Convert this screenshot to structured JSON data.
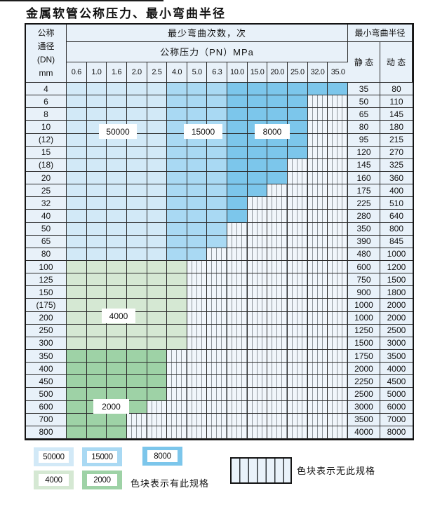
{
  "page": {
    "title": "金属软管公称压力、最小弯曲半径"
  },
  "colors": {
    "c50000": "#d2e9f7",
    "c15000": "#a9d9f3",
    "c8000": "#7cc6eb",
    "c4000": "#d5e8d3",
    "c2000": "#9ed2a6",
    "cell_bg": "#e8f1f9",
    "hatch_bg": "#f1f6fb",
    "hatch_line": "#8f969c",
    "grid_line": "#2b2b2b",
    "border": "#141414"
  },
  "header": {
    "dn_lines": [
      "公称",
      "通径",
      "(DN)",
      "mm"
    ],
    "bend_cycles": "最少弯曲次数，次",
    "pn_title": "公称压力（PN）MPa",
    "radius_title": "最小弯曲半径",
    "static_label": "静 态",
    "dynamic_label": "动 态"
  },
  "zone_labels": [
    {
      "text": "50000"
    },
    {
      "text": "15000"
    },
    {
      "text": "8000"
    },
    {
      "text": "4000"
    },
    {
      "text": "2000"
    }
  ],
  "legend": {
    "swatches": [
      {
        "label": "50000",
        "color_key": "c50000"
      },
      {
        "label": "15000",
        "color_key": "c15000"
      },
      {
        "label": "8000",
        "color_key": "c8000"
      },
      {
        "label": "4000",
        "color_key": "c4000"
      },
      {
        "label": "2000",
        "color_key": "c2000"
      }
    ],
    "has_spec_note": "色块表示有此规格",
    "no_spec_note": "色块表示无此规格"
  },
  "chart_data": {
    "type": "table",
    "title": "金属软管公称压力、最小弯曲半径",
    "pn_mpa_columns": [
      "0.6",
      "1.0",
      "1.6",
      "2.0",
      "2.5",
      "4.0",
      "5.0",
      "6.3",
      "10.0",
      "15.0",
      "20.0",
      "25.0",
      "32.0",
      "35.0"
    ],
    "bend_cycle_zones_for_blue_rows": {
      "50000": "PN 0.6–2.5",
      "15000": "PN 4.0–6.3",
      "8000": "PN 10.0–35.0"
    },
    "hatch_meaning": "无此规格",
    "rows": [
      {
        "dn": "4",
        "max_pn": "35.0",
        "cycle_group": "pn_zones",
        "static_radius": 35,
        "dynamic_radius": 80
      },
      {
        "dn": "6",
        "max_pn": "25.0",
        "cycle_group": "pn_zones",
        "static_radius": 50,
        "dynamic_radius": 110
      },
      {
        "dn": "8",
        "max_pn": "25.0",
        "cycle_group": "pn_zones",
        "static_radius": 65,
        "dynamic_radius": 145
      },
      {
        "dn": "10",
        "max_pn": "25.0",
        "cycle_group": "pn_zones",
        "static_radius": 80,
        "dynamic_radius": 180
      },
      {
        "dn": "(12)",
        "max_pn": "25.0",
        "cycle_group": "pn_zones",
        "static_radius": 95,
        "dynamic_radius": 215
      },
      {
        "dn": "15",
        "max_pn": "25.0",
        "cycle_group": "pn_zones",
        "static_radius": 120,
        "dynamic_radius": 270
      },
      {
        "dn": "(18)",
        "max_pn": "20.0",
        "cycle_group": "pn_zones",
        "static_radius": 145,
        "dynamic_radius": 325
      },
      {
        "dn": "20",
        "max_pn": "20.0",
        "cycle_group": "pn_zones",
        "static_radius": 160,
        "dynamic_radius": 360
      },
      {
        "dn": "25",
        "max_pn": "15.0",
        "cycle_group": "pn_zones",
        "static_radius": 175,
        "dynamic_radius": 400
      },
      {
        "dn": "32",
        "max_pn": "10.0",
        "cycle_group": "pn_zones",
        "static_radius": 225,
        "dynamic_radius": 510
      },
      {
        "dn": "40",
        "max_pn": "10.0",
        "cycle_group": "pn_zones",
        "static_radius": 280,
        "dynamic_radius": 640
      },
      {
        "dn": "50",
        "max_pn": "6.3",
        "cycle_group": "pn_zones",
        "static_radius": 350,
        "dynamic_radius": 800
      },
      {
        "dn": "65",
        "max_pn": "6.3",
        "cycle_group": "pn_zones",
        "static_radius": 390,
        "dynamic_radius": 845
      },
      {
        "dn": "80",
        "max_pn": "5.0",
        "cycle_group": "pn_zones",
        "static_radius": 480,
        "dynamic_radius": 1000
      },
      {
        "dn": "100",
        "max_pn": "4.0",
        "cycle_group": "4000",
        "static_radius": 600,
        "dynamic_radius": 1200
      },
      {
        "dn": "125",
        "max_pn": "4.0",
        "cycle_group": "4000",
        "static_radius": 750,
        "dynamic_radius": 1500
      },
      {
        "dn": "150",
        "max_pn": "4.0",
        "cycle_group": "4000",
        "static_radius": 900,
        "dynamic_radius": 1800
      },
      {
        "dn": "(175)",
        "max_pn": "4.0",
        "cycle_group": "4000",
        "static_radius": 1000,
        "dynamic_radius": 2000
      },
      {
        "dn": "200",
        "max_pn": "4.0",
        "cycle_group": "4000",
        "static_radius": 1000,
        "dynamic_radius": 2000
      },
      {
        "dn": "250",
        "max_pn": "4.0",
        "cycle_group": "4000",
        "static_radius": 1250,
        "dynamic_radius": 2500
      },
      {
        "dn": "300",
        "max_pn": "4.0",
        "cycle_group": "4000",
        "static_radius": 1500,
        "dynamic_radius": 3000
      },
      {
        "dn": "350",
        "max_pn": "2.5",
        "cycle_group": "2000",
        "static_radius": 1750,
        "dynamic_radius": 3500
      },
      {
        "dn": "400",
        "max_pn": "2.5",
        "cycle_group": "2000",
        "static_radius": 2000,
        "dynamic_radius": 4000
      },
      {
        "dn": "450",
        "max_pn": "2.5",
        "cycle_group": "2000",
        "static_radius": 2250,
        "dynamic_radius": 4500
      },
      {
        "dn": "500",
        "max_pn": "2.5",
        "cycle_group": "2000",
        "static_radius": 2500,
        "dynamic_radius": 5000
      },
      {
        "dn": "600",
        "max_pn": "2.0",
        "cycle_group": "2000",
        "static_radius": 3000,
        "dynamic_radius": 6000
      },
      {
        "dn": "700",
        "max_pn": "1.6",
        "cycle_group": "2000",
        "static_radius": 3500,
        "dynamic_radius": 7000
      },
      {
        "dn": "800",
        "max_pn": "1.6",
        "cycle_group": "2000",
        "static_radius": 4000,
        "dynamic_radius": 8000
      }
    ]
  }
}
